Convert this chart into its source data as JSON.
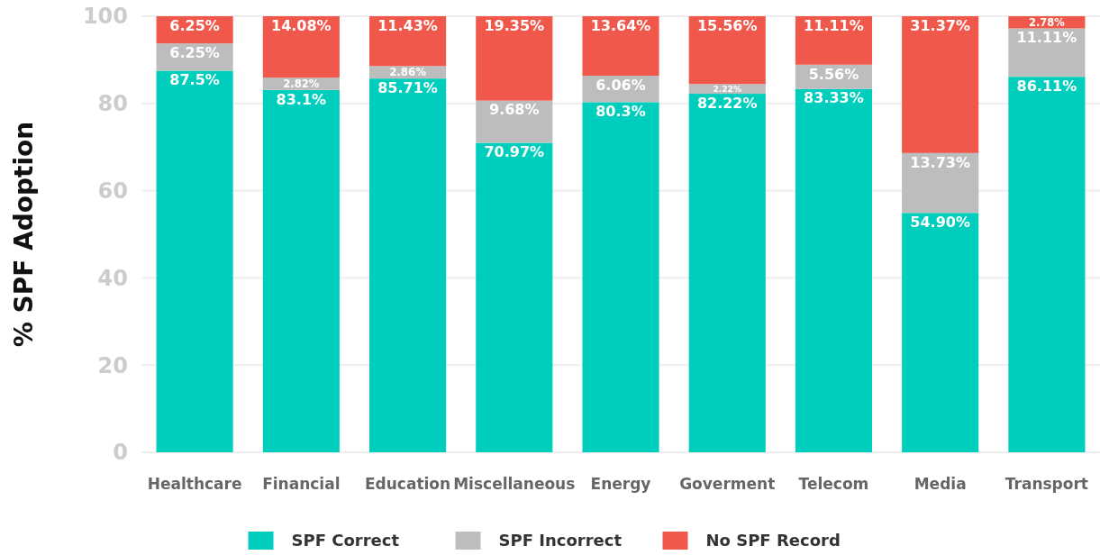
{
  "chart_data": {
    "type": "bar",
    "stacked": true,
    "ylabel": "% SPF Adoption",
    "categories": [
      "Healthcare",
      "Financial",
      "Education",
      "Miscellaneous",
      "Energy",
      "Goverment",
      "Telecom",
      "Media",
      "Transport"
    ],
    "series": [
      {
        "name": "SPF Correct",
        "color": "#00cebd",
        "values": [
          87.5,
          83.1,
          85.71,
          70.97,
          80.3,
          82.22,
          83.33,
          54.9,
          86.11
        ],
        "value_labels": [
          "87.5%",
          "83.1%",
          "85.71%",
          "70.97%",
          "80.3%",
          "82.22%",
          "83.33%",
          "54.90%",
          "86.11%"
        ]
      },
      {
        "name": "SPF Incorrect",
        "color": "#bdbdbd",
        "values": [
          6.25,
          2.82,
          2.86,
          9.68,
          6.06,
          2.22,
          5.56,
          13.73,
          11.11
        ],
        "value_labels": [
          "6.25%",
          "2.82%",
          "2.86%",
          "9.68%",
          "6.06%",
          "2.22%",
          "5.56%",
          "13.73%",
          "11.11%"
        ]
      },
      {
        "name": "No SPF Record",
        "color": "#ef584a",
        "values": [
          6.25,
          14.08,
          11.43,
          19.35,
          13.64,
          15.56,
          11.11,
          31.37,
          2.78
        ],
        "value_labels": [
          "6.25%",
          "14.08%",
          "11.43%",
          "19.35%",
          "13.64%",
          "15.56%",
          "11.11%",
          "31.37%",
          "2.78%"
        ]
      }
    ],
    "ylim": [
      0,
      100
    ],
    "yticks": [
      0,
      20,
      40,
      60,
      80,
      100
    ],
    "grid": "y",
    "legend": "bottom"
  }
}
